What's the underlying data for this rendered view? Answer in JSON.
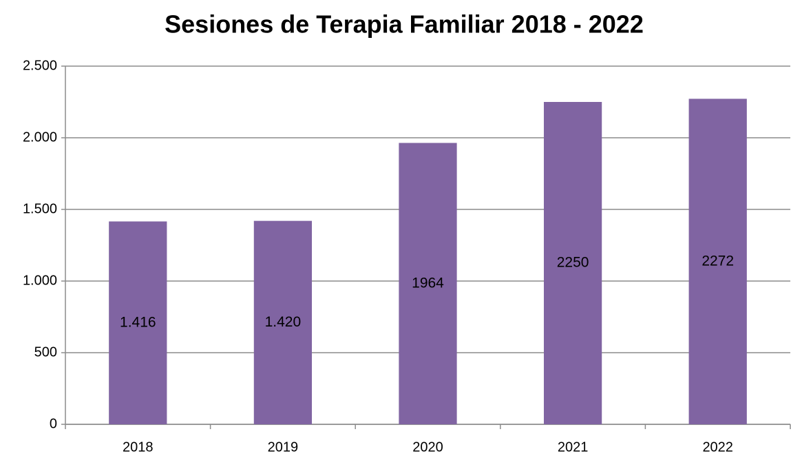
{
  "chart_data": {
    "type": "bar",
    "title": "Sesiones de Terapia Familiar 2018 - 2022",
    "categories": [
      "2018",
      "2019",
      "2020",
      "2021",
      "2022"
    ],
    "values": [
      1416,
      1420,
      1964,
      2250,
      2272
    ],
    "value_labels": [
      "1.416",
      "1.420",
      "1964",
      "2250",
      "2272"
    ],
    "color": "#8064a2",
    "ylim": [
      0,
      2500
    ],
    "yticks": [
      0,
      500,
      {
        "value": 1000,
        "label": "1.000"
      },
      {
        "value": 1500,
        "label": "1.500"
      },
      {
        "value": 2000,
        "label": "2.000"
      },
      {
        "value": 2500,
        "label": "2.500"
      }
    ],
    "grid": true
  }
}
